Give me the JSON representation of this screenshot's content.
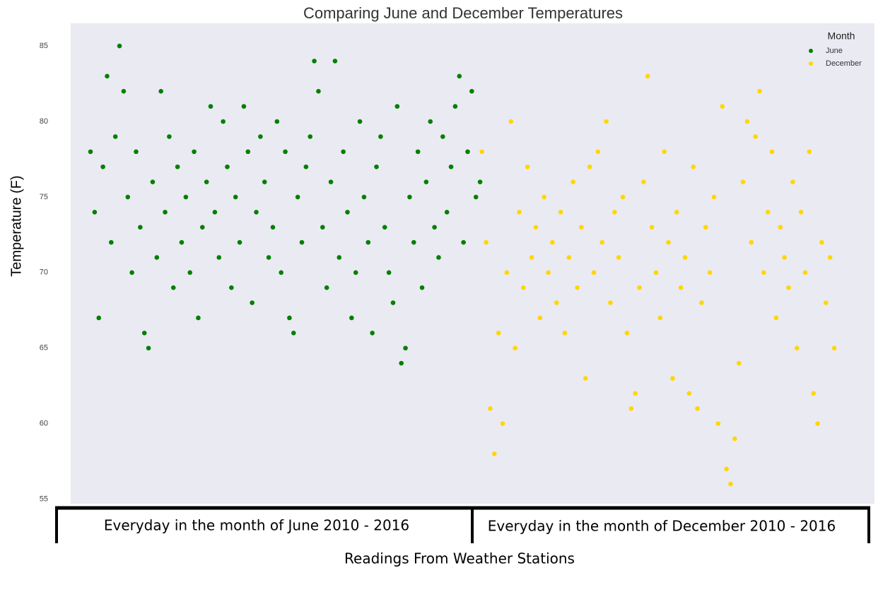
{
  "chart_data": {
    "type": "scatter",
    "title": "Comparing June and December Temperatures",
    "y_label": "Temperature (F)",
    "x_label": "Readings From Weather Stations",
    "annotations": [
      "Everyday in the month of June 2010 - 2016",
      "Everyday in the month of December 2010 - 2016"
    ],
    "legend_title": "Month",
    "legend": "upper right",
    "grid": false,
    "xlim": [
      -86,
      3405
    ],
    "ylim": [
      54.7,
      86.5
    ],
    "yticks": [
      55,
      60,
      65,
      70,
      75,
      80,
      85
    ],
    "series": [
      {
        "name": "June",
        "color": "#008000",
        "x": [
          0,
          18,
          36,
          54,
          72,
          90,
          108,
          126,
          144,
          162,
          180,
          198,
          216,
          234,
          252,
          270,
          288,
          306,
          324,
          342,
          360,
          378,
          396,
          414,
          432,
          450,
          468,
          486,
          504,
          522,
          540,
          558,
          576,
          594,
          612,
          630,
          648,
          666,
          684,
          702,
          720,
          738,
          756,
          774,
          792,
          810,
          828,
          846,
          864,
          882,
          900,
          918,
          936,
          954,
          972,
          990,
          1008,
          1026,
          1044,
          1062,
          1080,
          1098,
          1116,
          1134,
          1152,
          1170,
          1188,
          1206,
          1224,
          1242,
          1260,
          1278,
          1296,
          1314,
          1332,
          1350,
          1368,
          1386,
          1404,
          1422,
          1440,
          1458,
          1476,
          1494,
          1512,
          1530,
          1548,
          1566,
          1584,
          1602,
          1620,
          1638,
          1656,
          1674,
          1692
        ],
        "values": [
          78,
          74,
          67,
          77,
          83,
          72,
          79,
          85,
          82,
          75,
          70,
          78,
          73,
          66,
          65,
          76,
          71,
          82,
          74,
          79,
          69,
          77,
          72,
          75,
          70,
          78,
          67,
          73,
          76,
          81,
          74,
          71,
          80,
          77,
          69,
          75,
          72,
          81,
          78,
          68,
          74,
          79,
          76,
          71,
          73,
          80,
          70,
          78,
          67,
          66,
          75,
          72,
          77,
          79,
          84,
          82,
          73,
          69,
          76,
          84,
          71,
          78,
          74,
          67,
          70,
          80,
          75,
          72,
          66,
          77,
          79,
          73,
          70,
          68,
          81,
          64,
          65,
          75,
          72,
          78,
          69,
          76,
          80,
          73,
          71,
          79,
          74,
          77,
          81,
          83,
          72,
          78,
          82,
          75,
          76
        ]
      },
      {
        "name": "December",
        "color": "#ffd700",
        "x": [
          1700,
          1718,
          1736,
          1754,
          1772,
          1790,
          1808,
          1826,
          1844,
          1862,
          1880,
          1898,
          1916,
          1934,
          1952,
          1970,
          1988,
          2006,
          2024,
          2042,
          2060,
          2078,
          2096,
          2114,
          2132,
          2150,
          2168,
          2186,
          2204,
          2222,
          2240,
          2258,
          2276,
          2294,
          2312,
          2330,
          2348,
          2366,
          2384,
          2402,
          2420,
          2438,
          2456,
          2474,
          2492,
          2510,
          2528,
          2546,
          2564,
          2582,
          2600,
          2618,
          2636,
          2654,
          2672,
          2690,
          2708,
          2726,
          2744,
          2762,
          2780,
          2798,
          2816,
          2834,
          2852,
          2870,
          2888,
          2906,
          2924,
          2942,
          2960,
          2978,
          2996,
          3014,
          3032,
          3050,
          3068,
          3086,
          3104,
          3122,
          3140,
          3158,
          3176,
          3194,
          3212,
          3230
        ],
        "values": [
          78,
          72,
          61,
          58,
          66,
          60,
          70,
          80,
          65,
          74,
          69,
          77,
          71,
          73,
          67,
          75,
          70,
          72,
          68,
          74,
          66,
          71,
          76,
          69,
          73,
          63,
          77,
          70,
          78,
          72,
          80,
          68,
          74,
          71,
          75,
          66,
          61,
          62,
          69,
          76,
          83,
          73,
          70,
          67,
          78,
          72,
          63,
          74,
          69,
          71,
          62,
          77,
          61,
          68,
          73,
          70,
          75,
          60,
          81,
          57,
          56,
          59,
          64,
          76,
          80,
          72,
          79,
          82,
          70,
          74,
          78,
          67,
          73,
          71,
          69,
          76,
          65,
          74,
          70,
          78,
          62,
          60,
          72,
          68,
          71,
          65
        ]
      }
    ]
  }
}
